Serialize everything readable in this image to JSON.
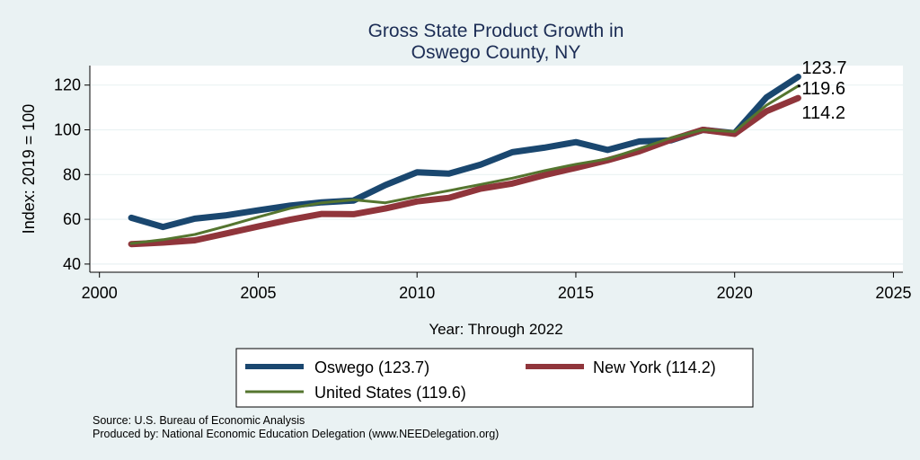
{
  "chart_data": {
    "type": "line",
    "title": [
      "Gross State Product Growth in",
      "Oswego County, NY"
    ],
    "xlabel": "Year: Through 2022",
    "ylabel": "Index: 2019 = 100",
    "xlim": [
      2000,
      2025
    ],
    "ylim": [
      37,
      129
    ],
    "xticks": [
      2000,
      2005,
      2010,
      2015,
      2020,
      2025
    ],
    "yticks": [
      40,
      60,
      80,
      100,
      120
    ],
    "grid": "horizontal",
    "legend_placement": "bottom",
    "x": [
      2001,
      2002,
      2003,
      2004,
      2005,
      2006,
      2007,
      2008,
      2009,
      2010,
      2011,
      2012,
      2013,
      2014,
      2015,
      2016,
      2017,
      2018,
      2019,
      2020,
      2021,
      2022
    ],
    "series": [
      {
        "name": "Oswego",
        "legend": "Oswego  (123.7)",
        "color": "#1a476f",
        "end_label": "123.7",
        "values": [
          60.7,
          56.6,
          60.3,
          61.8,
          64.0,
          66.1,
          67.6,
          68.4,
          75.3,
          81.0,
          80.4,
          84.4,
          90.0,
          92.0,
          94.5,
          91.0,
          94.8,
          95.3,
          100.0,
          98.5,
          114.5,
          123.7
        ]
      },
      {
        "name": "New York",
        "legend": "New York (114.2)",
        "color": "#90353b",
        "end_label": "114.2",
        "values": [
          48.9,
          49.6,
          50.6,
          53.7,
          56.8,
          59.8,
          62.4,
          62.3,
          64.8,
          68.0,
          69.6,
          73.7,
          76.0,
          79.7,
          83.0,
          86.4,
          90.4,
          95.6,
          100.0,
          98.2,
          108.3,
          114.2
        ]
      },
      {
        "name": "United States",
        "legend": "United States (119.6)",
        "color": "#55752f",
        "end_label": "119.6",
        "values": [
          49.2,
          50.9,
          53.2,
          57.0,
          61.0,
          64.9,
          67.4,
          68.7,
          67.4,
          70.2,
          72.8,
          75.6,
          78.4,
          81.7,
          84.6,
          87.0,
          91.6,
          96.4,
          100.0,
          99.2,
          111.0,
          119.6
        ]
      }
    ]
  },
  "footer": {
    "source": "Source: U.S. Bureau of Economic Analysis",
    "produced_by": "Produced by: National Economic Education Delegation (www.NEEDelegation.org)"
  }
}
